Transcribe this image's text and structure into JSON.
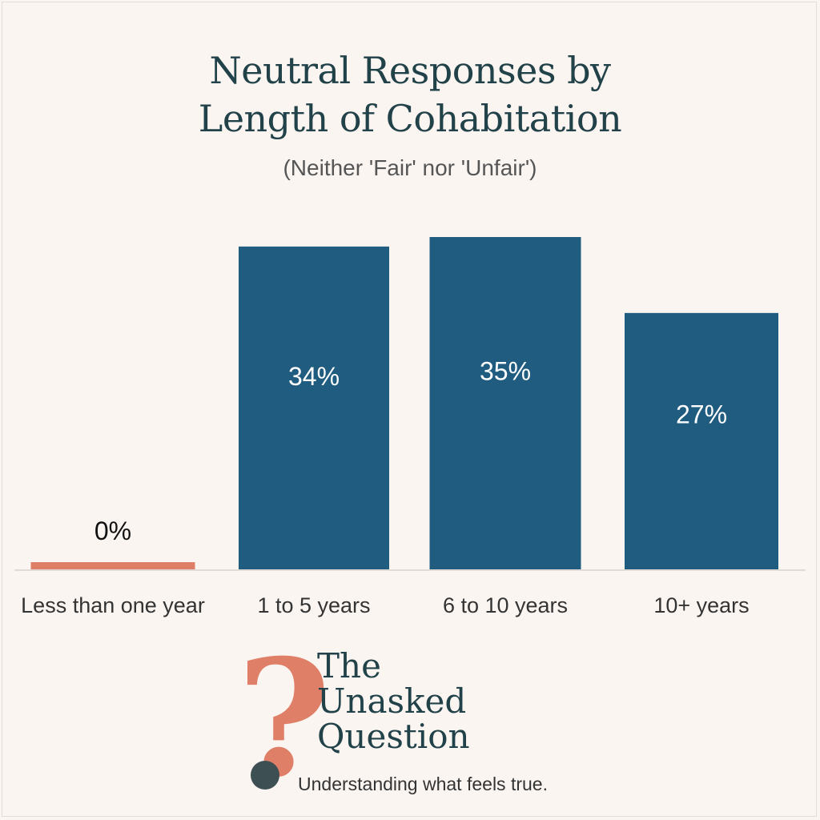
{
  "chart_data": {
    "type": "bar",
    "title_lines": [
      "Neutral Responses by",
      "Length of Cohabitation"
    ],
    "subtitle": "(Neither 'Fair' nor 'Unfair')",
    "categories": [
      "Less than one year",
      "1 to 5 years",
      "6 to 10 years",
      "10+ years"
    ],
    "values": [
      0,
      34,
      35,
      27
    ],
    "value_labels": [
      "0%",
      "34%",
      "35%",
      "27%"
    ],
    "bar_colors": [
      "#e07f68",
      "#1f5c80",
      "#1f5c80",
      "#1f5c80"
    ],
    "ylim": [
      0,
      35
    ],
    "grid": false,
    "legend": "none"
  },
  "brand": {
    "name_lines": [
      "The",
      "Unasked",
      "Question"
    ],
    "mark_glyph": "?",
    "tagline": "Understanding what feels true."
  },
  "colors": {
    "background": "#fbf5f1",
    "title": "#22424a",
    "bar_primary": "#1f5c80",
    "bar_accent": "#e07f68"
  }
}
